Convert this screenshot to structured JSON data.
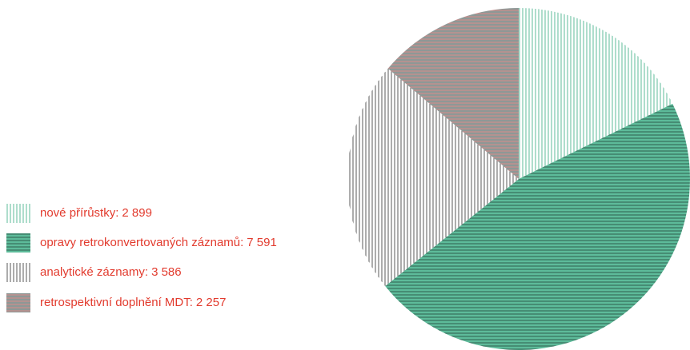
{
  "chart_data": {
    "type": "pie",
    "categories": [
      "nové přírůstky:",
      "opravy retrokonvertovaných záznamů:",
      "analytické záznamy:",
      "retrospektivní doplnění MDT:"
    ],
    "values": [
      2899,
      7591,
      3586,
      2257
    ],
    "value_labels": [
      "2 899",
      "7 591",
      "3 586",
      "2 257"
    ],
    "colors": [
      "#ffffff",
      "#5dbb9a",
      "#ffffff",
      "#8e9896"
    ],
    "stripe_colors": [
      "#5dbb9a",
      "#2f5f4f",
      "#5a5a5a",
      "#d98b8b"
    ],
    "hatch": [
      "vertical",
      "horizontal",
      "vertical",
      "horizontal"
    ],
    "legend": "bottom-left"
  }
}
